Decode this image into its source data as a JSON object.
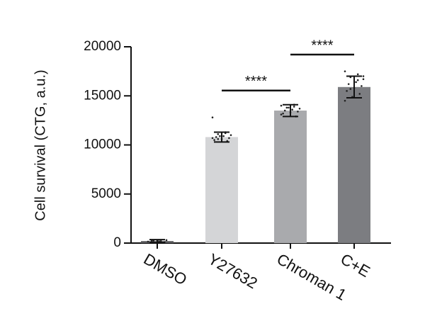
{
  "chart_data": {
    "type": "bar",
    "ylabel": "Cell survival (CTG, a.u.)",
    "categories": [
      "DMSO",
      "Y27632",
      "Chroman 1",
      "C+E"
    ],
    "values": [
      200,
      10800,
      13500,
      15900
    ],
    "errors": [
      150,
      500,
      600,
      1100
    ],
    "colors": [
      "#58585b",
      "#d4d5d7",
      "#a9aaad",
      "#7c7d81"
    ],
    "points": [
      [
        150,
        200,
        250,
        300,
        180,
        220,
        100,
        260
      ],
      [
        12800,
        11300,
        11100,
        11000,
        10900,
        10800,
        10700,
        10600,
        10500,
        10400,
        10900,
        10700,
        11200,
        10600
      ],
      [
        14000,
        13900,
        13800,
        13700,
        13600,
        13500,
        13400,
        13300,
        13200,
        12900,
        13800,
        13100,
        14100
      ],
      [
        17500,
        17200,
        16900,
        16700,
        16400,
        16200,
        16000,
        15800,
        15500,
        15200,
        14900,
        14500,
        16600,
        15700,
        17000
      ]
    ],
    "annotations": [
      {
        "text": "****",
        "between": [
          "Y27632",
          "Chroman 1"
        ]
      },
      {
        "text": "****",
        "between": [
          "Chroman 1",
          "C+E"
        ]
      }
    ],
    "ylim": [
      0,
      20000
    ],
    "yticks": [
      0,
      5000,
      10000,
      15000,
      20000
    ]
  }
}
